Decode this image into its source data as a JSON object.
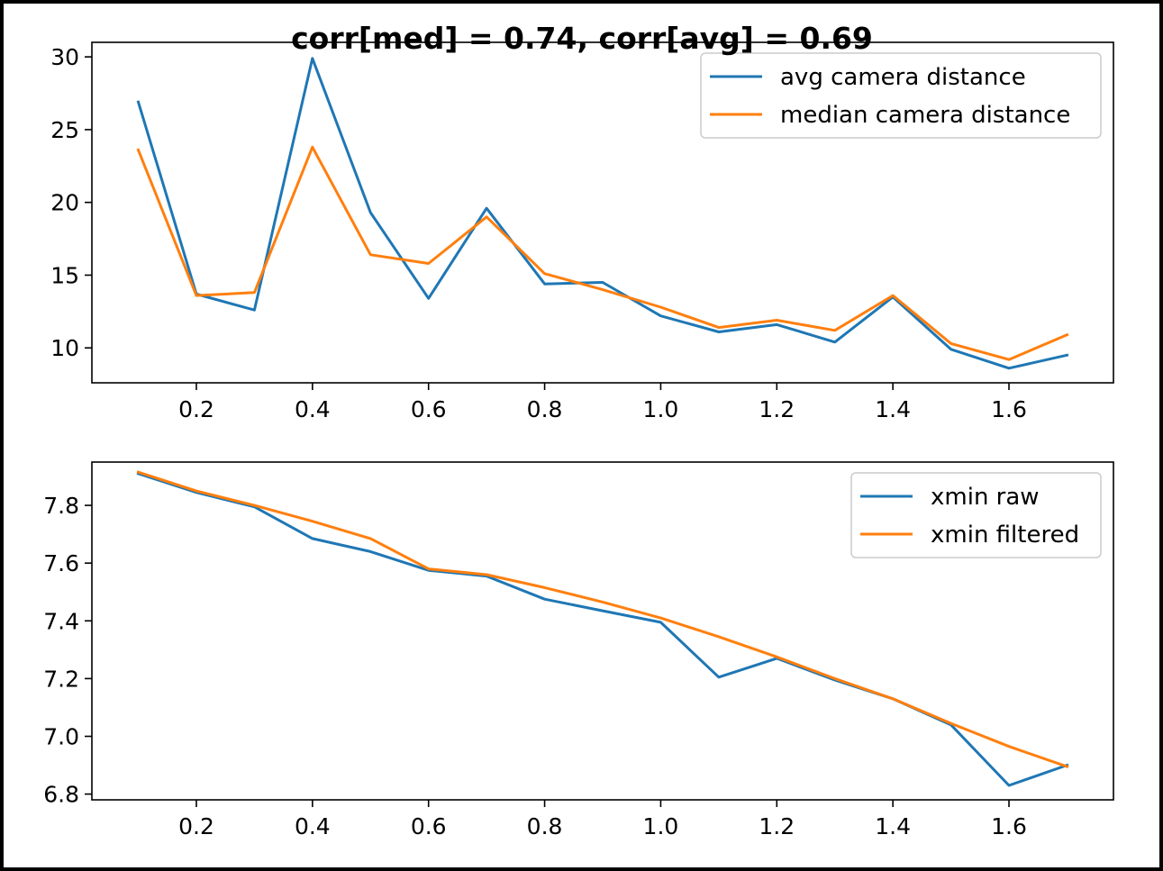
{
  "colors": {
    "series1": "#1f77b4",
    "series2": "#ff7f0e",
    "axes": "#000000",
    "background": "#ffffff"
  },
  "chart_data": [
    {
      "type": "line",
      "title": "corr[med] = 0.74, corr[avg] = 0.69",
      "xlabel": "",
      "ylabel": "",
      "x": [
        0.1,
        0.2,
        0.3,
        0.4,
        0.5,
        0.6,
        0.7,
        0.8,
        0.9,
        1.0,
        1.1,
        1.2,
        1.3,
        1.4,
        1.5,
        1.6,
        1.7
      ],
      "series": [
        {
          "name": "avg camera distance",
          "values": [
            26.9,
            13.7,
            12.6,
            29.9,
            19.3,
            13.4,
            19.6,
            14.4,
            14.5,
            12.2,
            11.1,
            11.6,
            10.4,
            13.5,
            9.9,
            8.6,
            9.5
          ]
        },
        {
          "name": "median camera distance",
          "values": [
            23.6,
            13.6,
            13.8,
            23.8,
            16.4,
            15.8,
            19.0,
            15.1,
            14.0,
            12.8,
            11.4,
            11.9,
            11.2,
            13.6,
            10.3,
            9.2,
            10.9
          ]
        }
      ],
      "xlim": [
        0.02,
        1.78
      ],
      "ylim": [
        7.6,
        31.0
      ],
      "xticks": [
        "0.2",
        "0.4",
        "0.6",
        "0.8",
        "1.0",
        "1.2",
        "1.4",
        "1.6"
      ],
      "yticks": [
        "10",
        "15",
        "20",
        "25",
        "30"
      ],
      "legend": "top-right",
      "grid": false
    },
    {
      "type": "line",
      "title": "",
      "xlabel": "",
      "ylabel": "",
      "x": [
        0.1,
        0.2,
        0.3,
        0.4,
        0.5,
        0.6,
        0.7,
        0.8,
        0.9,
        1.0,
        1.1,
        1.2,
        1.3,
        1.4,
        1.5,
        1.6,
        1.7
      ],
      "series": [
        {
          "name": "xmin raw",
          "values": [
            7.91,
            7.845,
            7.795,
            7.685,
            7.64,
            7.575,
            7.555,
            7.475,
            7.435,
            7.395,
            7.205,
            7.27,
            7.195,
            7.13,
            7.04,
            6.83,
            6.9
          ]
        },
        {
          "name": "xmin filtered",
          "values": [
            7.915,
            7.85,
            7.8,
            7.745,
            7.685,
            7.58,
            7.56,
            7.515,
            7.465,
            7.41,
            7.345,
            7.275,
            7.2,
            7.13,
            7.045,
            6.965,
            6.895
          ]
        }
      ],
      "xlim": [
        0.02,
        1.78
      ],
      "ylim": [
        6.78,
        7.95
      ],
      "xticks": [
        "0.2",
        "0.4",
        "0.6",
        "0.8",
        "1.0",
        "1.2",
        "1.4",
        "1.6"
      ],
      "yticks": [
        "6.8",
        "7.0",
        "7.2",
        "7.4",
        "7.6",
        "7.8"
      ],
      "legend": "top-right",
      "grid": false
    }
  ]
}
